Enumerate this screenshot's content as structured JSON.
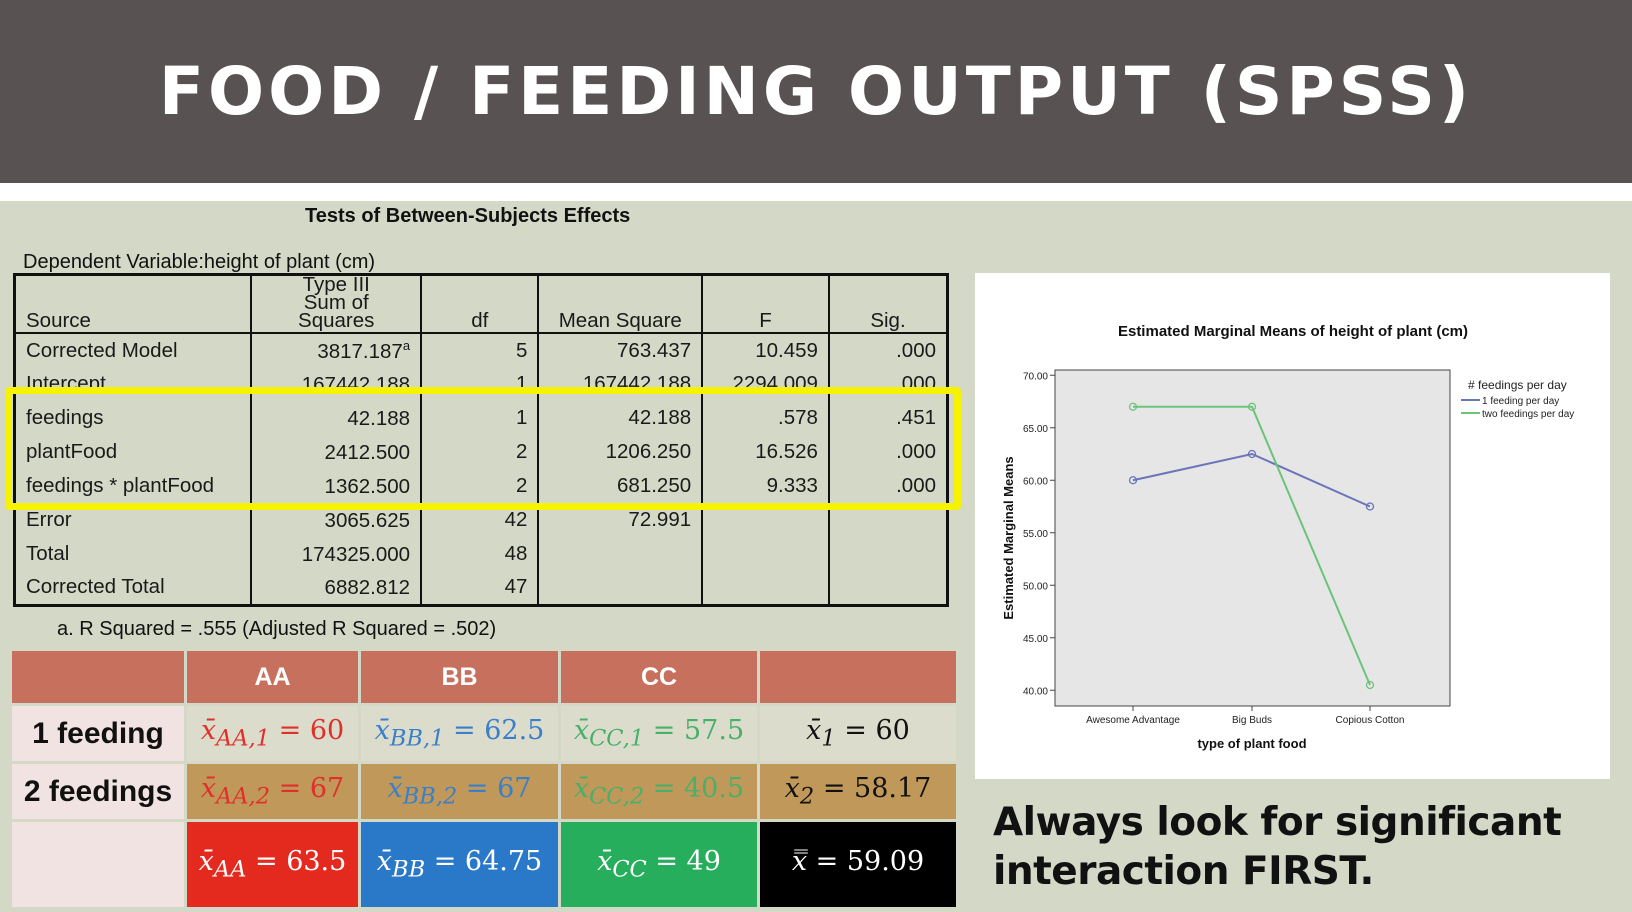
{
  "title": "FOOD / FEEDING OUTPUT (SPSS)",
  "anova": {
    "title": "Tests of Between-Subjects Effects",
    "dependent_variable": "Dependent Variable:height of plant (cm)",
    "headers": [
      "Source",
      "Type III Sum of Squares",
      "df",
      "Mean Square",
      "F",
      "Sig."
    ],
    "rows": [
      {
        "source": "Corrected Model",
        "ss": "3817.187",
        "ss_note": "a",
        "df": "5",
        "ms": "763.437",
        "f": "10.459",
        "sig": ".000"
      },
      {
        "source": "Intercept",
        "ss": "167442.188",
        "ss_note": "",
        "df": "1",
        "ms": "167442.188",
        "f": "2294.009",
        "sig": ".000"
      },
      {
        "source": "feedings",
        "ss": "42.188",
        "ss_note": "",
        "df": "1",
        "ms": "42.188",
        "f": ".578",
        "sig": ".451"
      },
      {
        "source": "plantFood",
        "ss": "2412.500",
        "ss_note": "",
        "df": "2",
        "ms": "1206.250",
        "f": "16.526",
        "sig": ".000"
      },
      {
        "source": "feedings * plantFood",
        "ss": "1362.500",
        "ss_note": "",
        "df": "2",
        "ms": "681.250",
        "f": "9.333",
        "sig": ".000"
      },
      {
        "source": "Error",
        "ss": "3065.625",
        "ss_note": "",
        "df": "42",
        "ms": "72.991",
        "f": "",
        "sig": ""
      },
      {
        "source": "Total",
        "ss": "174325.000",
        "ss_note": "",
        "df": "48",
        "ms": "",
        "f": "",
        "sig": ""
      },
      {
        "source": "Corrected Total",
        "ss": "6882.812",
        "ss_note": "",
        "df": "47",
        "ms": "",
        "f": "",
        "sig": ""
      }
    ],
    "footnote": "a. R Squared = .555 (Adjusted R Squared = .502)",
    "highlight_color": "#f6f200"
  },
  "means": {
    "columns": [
      "AA",
      "BB",
      "CC"
    ],
    "rows": [
      {
        "label": "1 feeding",
        "cells": [
          {
            "sym": "x̄",
            "sub": "AA,1",
            "val": "60"
          },
          {
            "sym": "x̄",
            "sub": "BB,1",
            "val": "62.5"
          },
          {
            "sym": "x̄",
            "sub": "CC,1",
            "val": "57.5"
          },
          {
            "sym": "x̄",
            "sub": "1",
            "val": "60"
          }
        ]
      },
      {
        "label": "2 feedings",
        "cells": [
          {
            "sym": "x̄",
            "sub": "AA,2",
            "val": "67"
          },
          {
            "sym": "x̄",
            "sub": "BB,2",
            "val": "67"
          },
          {
            "sym": "x̄",
            "sub": "CC,2",
            "val": "40.5"
          },
          {
            "sym": "x̄",
            "sub": "2",
            "val": "58.17"
          }
        ]
      },
      {
        "label": "",
        "cells": [
          {
            "sym": "x̄",
            "sub": "AA",
            "val": "63.5"
          },
          {
            "sym": "x̄",
            "sub": "BB",
            "val": "64.75"
          },
          {
            "sym": "x̄",
            "sub": "CC",
            "val": "49"
          },
          {
            "sym": "x̿",
            "sub": "",
            "val": "59.09"
          }
        ]
      }
    ],
    "colors": {
      "header": "#c8705e",
      "aa": "#e42a1f",
      "bb": "#2a78c8",
      "cc": "#27ae5d",
      "row2": "#c0985a"
    }
  },
  "chart_data": {
    "type": "line",
    "title": "Estimated Marginal Means of height of plant (cm)",
    "xlabel": "type of plant food",
    "ylabel": "Estimated Marginal Means",
    "categories": [
      "Awesome Advantage",
      "Big Buds",
      "Copious Cotton"
    ],
    "ylim": [
      38.5,
      70.5
    ],
    "yticks": [
      "40.00",
      "45.00",
      "50.00",
      "55.00",
      "60.00",
      "65.00",
      "70.00"
    ],
    "legend_title": "# feedings per day",
    "legend_position": "right",
    "series": [
      {
        "name": "1 feeding per day",
        "values": [
          60,
          62.5,
          57.5
        ],
        "color": "#6a76b8"
      },
      {
        "name": "two feedings per day",
        "values": [
          67,
          67,
          40.5
        ],
        "color": "#6cc37a"
      }
    ]
  },
  "note": "Always look for significant interaction FIRST."
}
